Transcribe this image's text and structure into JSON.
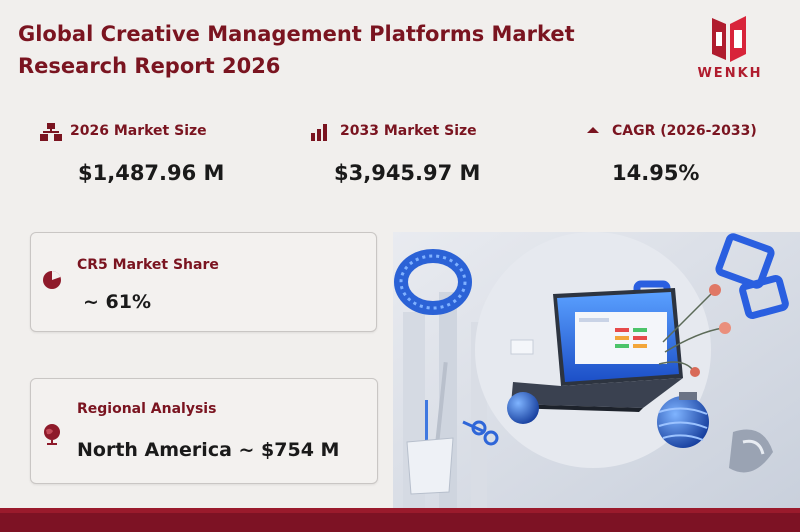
{
  "report": {
    "title_line1": "Global Creative Management Platforms Market",
    "title_line2": "Research Report 2026"
  },
  "brand": {
    "logo_text": "WENKH",
    "color": "#b01c2e"
  },
  "stats": {
    "market_2026": {
      "label": "2026 Market Size",
      "value": "$1,487.96 M",
      "icon": "org-chart-icon"
    },
    "market_2033": {
      "label": "2033 Market Size",
      "value": "$3,945.97 M",
      "icon": "bar-chart-icon"
    },
    "cagr": {
      "label": "CAGR (2026-2033)",
      "value": "14.95%",
      "icon": "up-triangle-icon"
    }
  },
  "cards": {
    "cr5": {
      "label": "CR5 Market Share",
      "value": "~ 61%",
      "icon": "pie-chart-icon"
    },
    "regional": {
      "label": "Regional Analysis",
      "value": "North America ~ $754 M",
      "icon": "globe-icon"
    }
  },
  "colors": {
    "accent": "#7a1420",
    "bar": "#7d1224",
    "background": "#f1efed"
  }
}
